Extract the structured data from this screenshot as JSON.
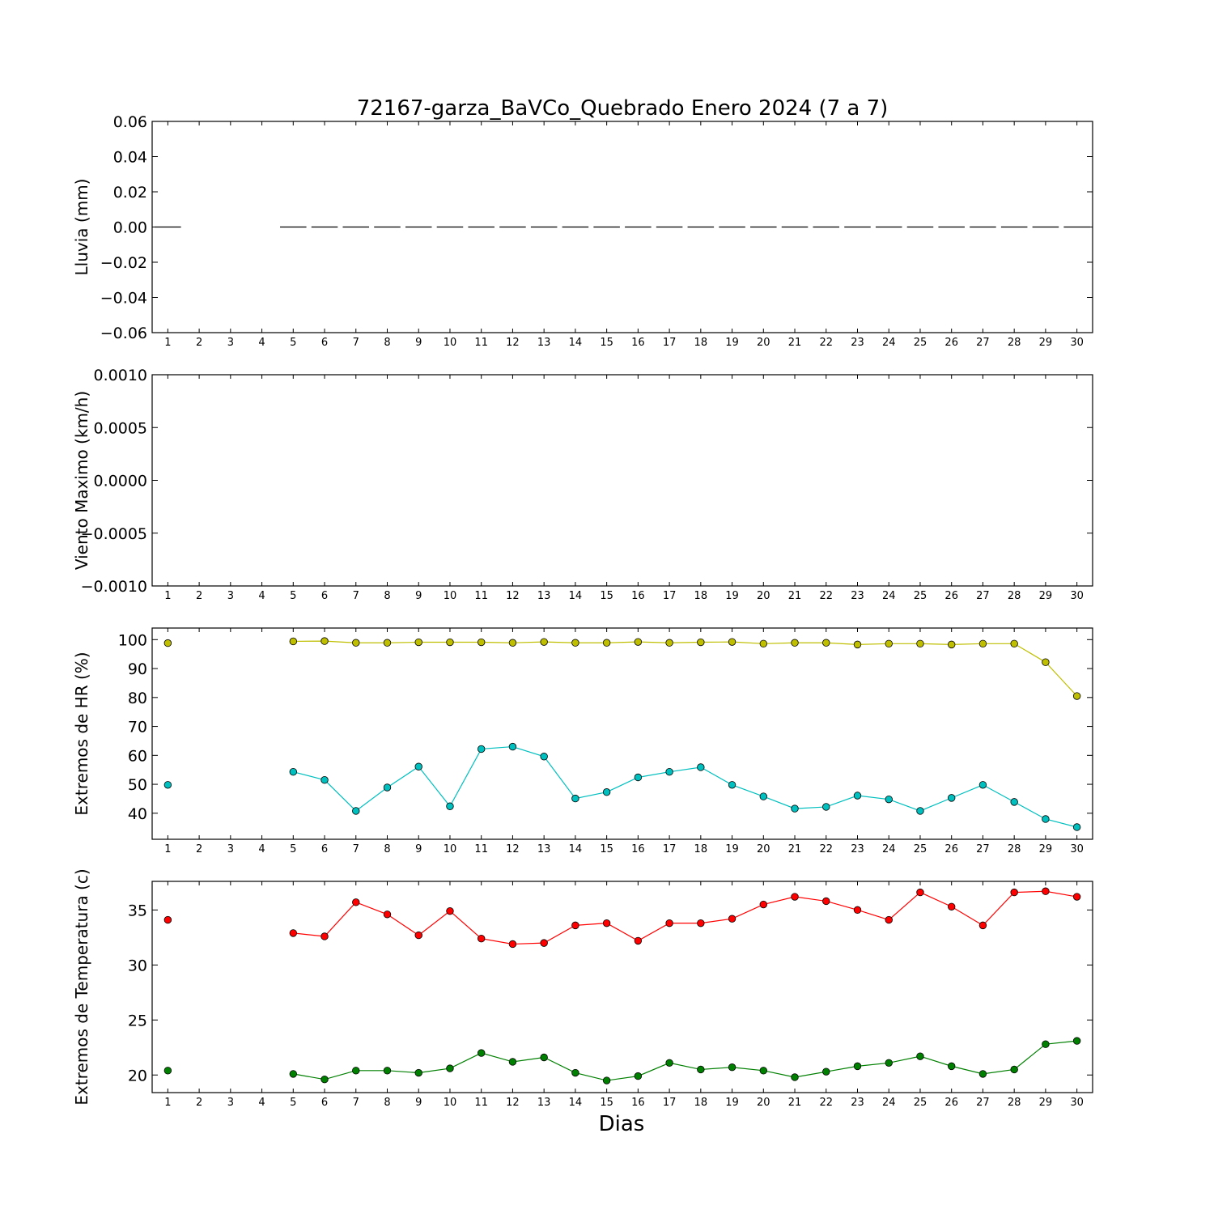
{
  "figure": {
    "title": "72167-garza_BaVCo_Quebrado Enero 2024  (7 a 7)",
    "xlabel": "Dias"
  },
  "chart_data": [
    {
      "type": "line",
      "ylabel": "Lluvia (mm)",
      "x": [
        1,
        2,
        3,
        4,
        5,
        6,
        7,
        8,
        9,
        10,
        11,
        12,
        13,
        14,
        15,
        16,
        17,
        18,
        19,
        20,
        21,
        22,
        23,
        24,
        25,
        26,
        27,
        28,
        29,
        30
      ],
      "xlim": [
        0.5,
        30.5
      ],
      "ylim": [
        -0.06,
        0.06
      ],
      "yticks": [
        0.06,
        0.04,
        0.02,
        0.0,
        -0.02,
        -0.04,
        -0.06
      ],
      "ytick_labels": [
        "0.06",
        "0.04",
        "0.02",
        "0.00",
        "−0.02",
        "−0.04",
        "−0.06"
      ],
      "series": [
        {
          "color": "#000000",
          "style": "steps",
          "values": [
            0,
            null,
            null,
            null,
            0,
            0,
            0,
            0,
            0,
            0,
            0,
            0,
            0,
            0,
            0,
            0,
            0,
            0,
            0,
            0,
            0,
            0,
            0,
            0,
            0,
            0,
            0,
            0,
            0,
            0
          ]
        }
      ]
    },
    {
      "type": "line",
      "ylabel": "Viento Maximo (km/h)",
      "x": [
        1,
        2,
        3,
        4,
        5,
        6,
        7,
        8,
        9,
        10,
        11,
        12,
        13,
        14,
        15,
        16,
        17,
        18,
        19,
        20,
        21,
        22,
        23,
        24,
        25,
        26,
        27,
        28,
        29,
        30
      ],
      "xlim": [
        0.5,
        30.5
      ],
      "ylim": [
        -0.001,
        0.001
      ],
      "yticks": [
        0.001,
        0.0005,
        0,
        -0.0005,
        -0.001
      ],
      "ytick_labels": [
        "0.0010",
        "0.0005",
        "0.0000",
        "−0.0005",
        "−0.0010"
      ],
      "series": []
    },
    {
      "type": "line",
      "ylabel": "Extremos de HR (%)",
      "x": [
        1,
        2,
        3,
        4,
        5,
        6,
        7,
        8,
        9,
        10,
        11,
        12,
        13,
        14,
        15,
        16,
        17,
        18,
        19,
        20,
        21,
        22,
        23,
        24,
        25,
        26,
        27,
        28,
        29,
        30
      ],
      "xlim": [
        0.5,
        30.5
      ],
      "ylim": [
        31,
        104
      ],
      "yticks": [
        100,
        90,
        80,
        70,
        60,
        50,
        40
      ],
      "ytick_labels": [
        "100",
        "90",
        "80",
        "70",
        "60",
        "50",
        "40"
      ],
      "series": [
        {
          "color": "#bfbf00",
          "values": [
            98.8,
            null,
            null,
            null,
            99.4,
            99.5,
            98.9,
            98.9,
            99.1,
            99.1,
            99.1,
            98.9,
            99.2,
            98.9,
            98.9,
            99.2,
            98.9,
            99.1,
            99.2,
            98.6,
            98.9,
            98.9,
            98.3,
            98.6,
            98.6,
            98.3,
            98.6,
            98.6,
            92.2,
            80.5
          ]
        },
        {
          "color": "#00bfbf",
          "values": [
            49.8,
            null,
            null,
            null,
            54.3,
            51.5,
            40.8,
            48.9,
            56.1,
            42.4,
            62.2,
            63.0,
            59.6,
            45.1,
            47.3,
            52.4,
            54.3,
            55.9,
            49.8,
            45.8,
            41.6,
            42.2,
            46.1,
            44.8,
            40.8,
            45.3,
            49.8,
            43.9,
            38.0,
            35.2
          ]
        }
      ]
    },
    {
      "type": "line",
      "ylabel": "Extremos de Temperatura (c)",
      "x": [
        1,
        2,
        3,
        4,
        5,
        6,
        7,
        8,
        9,
        10,
        11,
        12,
        13,
        14,
        15,
        16,
        17,
        18,
        19,
        20,
        21,
        22,
        23,
        24,
        25,
        26,
        27,
        28,
        29,
        30
      ],
      "xlim": [
        0.5,
        30.5
      ],
      "ylim": [
        18.4,
        37.6
      ],
      "yticks": [
        35,
        30,
        25,
        20
      ],
      "ytick_labels": [
        "35",
        "30",
        "25",
        "20"
      ],
      "series": [
        {
          "color": "#ff0000",
          "values": [
            34.1,
            null,
            null,
            null,
            32.9,
            32.6,
            35.7,
            34.6,
            32.7,
            34.9,
            32.4,
            31.9,
            32.0,
            33.6,
            33.8,
            32.2,
            33.8,
            33.8,
            34.2,
            35.5,
            36.2,
            35.8,
            35.0,
            34.1,
            36.6,
            35.3,
            33.6,
            36.6,
            36.7,
            36.2
          ]
        },
        {
          "color": "#008000",
          "values": [
            20.4,
            null,
            null,
            null,
            20.1,
            19.6,
            20.4,
            20.4,
            20.2,
            20.6,
            22.0,
            21.2,
            21.6,
            20.2,
            19.5,
            19.9,
            21.1,
            20.5,
            20.7,
            20.4,
            19.8,
            20.3,
            20.8,
            21.1,
            21.7,
            20.8,
            20.1,
            20.5,
            22.8,
            23.1
          ]
        }
      ]
    }
  ]
}
